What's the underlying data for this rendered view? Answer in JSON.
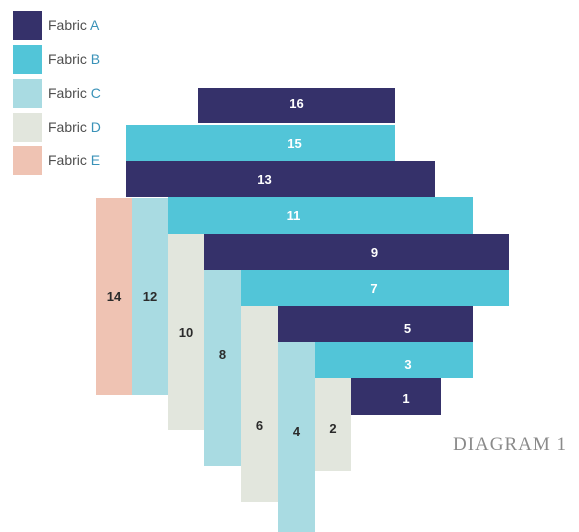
{
  "colors": {
    "fabric_a": "#35316a",
    "fabric_b": "#52c5d8",
    "fabric_c": "#a9dbe2",
    "fabric_d": "#e2e6dd",
    "fabric_e": "#efc3b3"
  },
  "legend": [
    {
      "prefix": "Fabric",
      "letter": "A"
    },
    {
      "prefix": "Fabric",
      "letter": "B"
    },
    {
      "prefix": "Fabric",
      "letter": "C"
    },
    {
      "prefix": "Fabric",
      "letter": "D"
    },
    {
      "prefix": "Fabric",
      "letter": "E"
    }
  ],
  "strips": [
    {
      "label": "14",
      "fabric": "E"
    },
    {
      "label": "12",
      "fabric": "C"
    },
    {
      "label": "10",
      "fabric": "D"
    },
    {
      "label": "8",
      "fabric": "C"
    },
    {
      "label": "6",
      "fabric": "D"
    },
    {
      "label": "4",
      "fabric": "C"
    },
    {
      "label": "2",
      "fabric": "D"
    },
    {
      "label": "16",
      "fabric": "A"
    },
    {
      "label": "15",
      "fabric": "B"
    },
    {
      "label": "13",
      "fabric": "A"
    },
    {
      "label": "11",
      "fabric": "B"
    },
    {
      "label": "9",
      "fabric": "A"
    },
    {
      "label": "7",
      "fabric": "B"
    },
    {
      "label": "5",
      "fabric": "A"
    },
    {
      "label": "3",
      "fabric": "B"
    },
    {
      "label": "1",
      "fabric": "A"
    }
  ],
  "caption": "DIAGRAM 1"
}
